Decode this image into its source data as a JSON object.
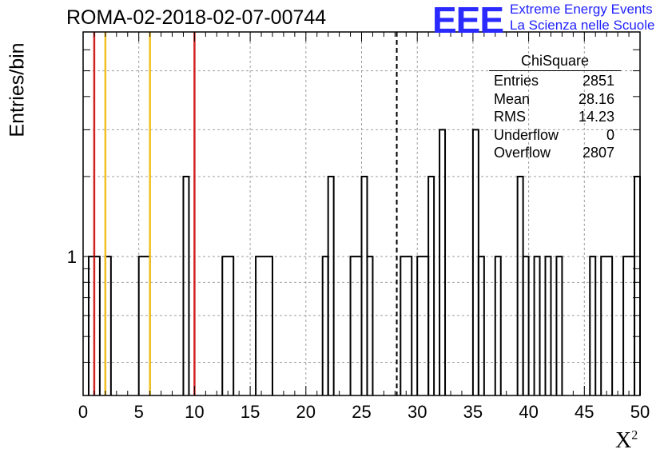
{
  "title": "ROMA-02-2018-02-07-00744",
  "logo": {
    "mark": "EEE",
    "line1": "Extreme Energy Events",
    "line2": "La Scienza nelle Scuole",
    "color": "#1f1fff"
  },
  "stats": {
    "name": "ChiSquare",
    "rows": [
      {
        "label": "Entries",
        "value": "2851"
      },
      {
        "label": "Mean",
        "value": "28.16"
      },
      {
        "label": "RMS",
        "value": "14.23"
      },
      {
        "label": "Underflow",
        "value": "0"
      },
      {
        "label": "Overflow",
        "value": "2807"
      }
    ]
  },
  "chart_data": {
    "type": "histogram",
    "title": "ROMA-02-2018-02-07-00744",
    "xlabel": "X",
    "xlabel_sup": "2",
    "ylabel": "Entries/bin",
    "xlim": [
      0,
      50
    ],
    "ylim_log": [
      0.3,
      7
    ],
    "y_scale": "log",
    "grid": true,
    "bin_width": 0.5,
    "x_ticks": [
      0,
      5,
      10,
      15,
      20,
      25,
      30,
      35,
      40,
      45,
      50
    ],
    "y_tick_labels": [
      {
        "value": 1,
        "label": "1"
      }
    ],
    "bins": [
      {
        "x0": 0.5,
        "x1": 1.5,
        "count": 1
      },
      {
        "x0": 2.0,
        "x1": 2.5,
        "count": 1
      },
      {
        "x0": 5.0,
        "x1": 6.0,
        "count": 1
      },
      {
        "x0": 9.0,
        "x1": 9.5,
        "count": 2
      },
      {
        "x0": 12.5,
        "x1": 13.5,
        "count": 1
      },
      {
        "x0": 15.5,
        "x1": 17.0,
        "count": 1
      },
      {
        "x0": 21.5,
        "x1": 22.0,
        "count": 1
      },
      {
        "x0": 22.0,
        "x1": 22.5,
        "count": 2
      },
      {
        "x0": 24.0,
        "x1": 25.0,
        "count": 1
      },
      {
        "x0": 25.0,
        "x1": 25.5,
        "count": 2
      },
      {
        "x0": 25.5,
        "x1": 26.0,
        "count": 1
      },
      {
        "x0": 28.5,
        "x1": 29.5,
        "count": 1
      },
      {
        "x0": 30.0,
        "x1": 31.0,
        "count": 1
      },
      {
        "x0": 31.0,
        "x1": 31.5,
        "count": 2
      },
      {
        "x0": 32.0,
        "x1": 32.5,
        "count": 3
      },
      {
        "x0": 35.0,
        "x1": 35.5,
        "count": 3
      },
      {
        "x0": 35.5,
        "x1": 36.0,
        "count": 1
      },
      {
        "x0": 37.0,
        "x1": 37.5,
        "count": 1
      },
      {
        "x0": 39.0,
        "x1": 39.5,
        "count": 2
      },
      {
        "x0": 39.5,
        "x1": 40.0,
        "count": 1
      },
      {
        "x0": 40.5,
        "x1": 41.0,
        "count": 1
      },
      {
        "x0": 41.5,
        "x1": 42.0,
        "count": 1
      },
      {
        "x0": 42.5,
        "x1": 43.0,
        "count": 1
      },
      {
        "x0": 45.5,
        "x1": 46.0,
        "count": 1
      },
      {
        "x0": 46.5,
        "x1": 47.5,
        "count": 1
      },
      {
        "x0": 48.5,
        "x1": 49.5,
        "count": 1
      },
      {
        "x0": 49.5,
        "x1": 50.0,
        "count": 2
      }
    ],
    "reference_lines": [
      {
        "x": 1.0,
        "color": "#d32020",
        "style": "solid"
      },
      {
        "x": 2.0,
        "color": "#f0c020",
        "style": "solid"
      },
      {
        "x": 6.0,
        "color": "#f0c020",
        "style": "solid"
      },
      {
        "x": 10.0,
        "color": "#d32020",
        "style": "solid"
      },
      {
        "x": 28.16,
        "color": "#000000",
        "style": "dashed"
      }
    ]
  }
}
